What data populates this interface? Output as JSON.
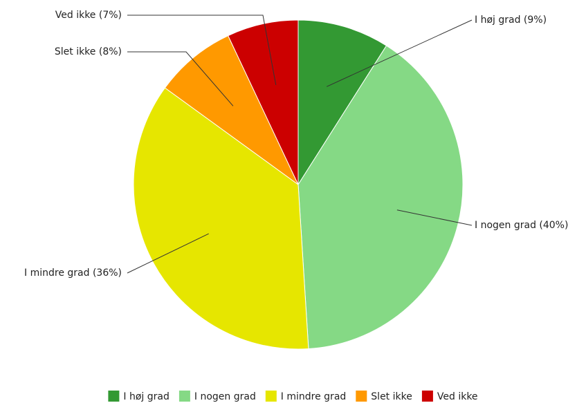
{
  "chart_data": {
    "type": "pie",
    "categories": [
      "I høj grad",
      "I nogen grad",
      "I mindre grad",
      "Slet ikke",
      "Ved ikke"
    ],
    "values": [
      9,
      40,
      36,
      8,
      7
    ],
    "unit": "%",
    "labels": [
      "I høj grad (9%)",
      "I nogen grad (40%)",
      "I mindre grad (36%)",
      "Slet ikke (8%)",
      "Ved ikke (7%)"
    ],
    "colors": [
      "#339933",
      "#85d985",
      "#e6e600",
      "#ff9900",
      "#cc0000"
    ],
    "start": "top",
    "direction": "clockwise",
    "legend_position": "bottom",
    "legend": [
      "I høj grad",
      "I nogen grad",
      "I mindre grad",
      "Slet ikke",
      "Ved ikke"
    ]
  }
}
